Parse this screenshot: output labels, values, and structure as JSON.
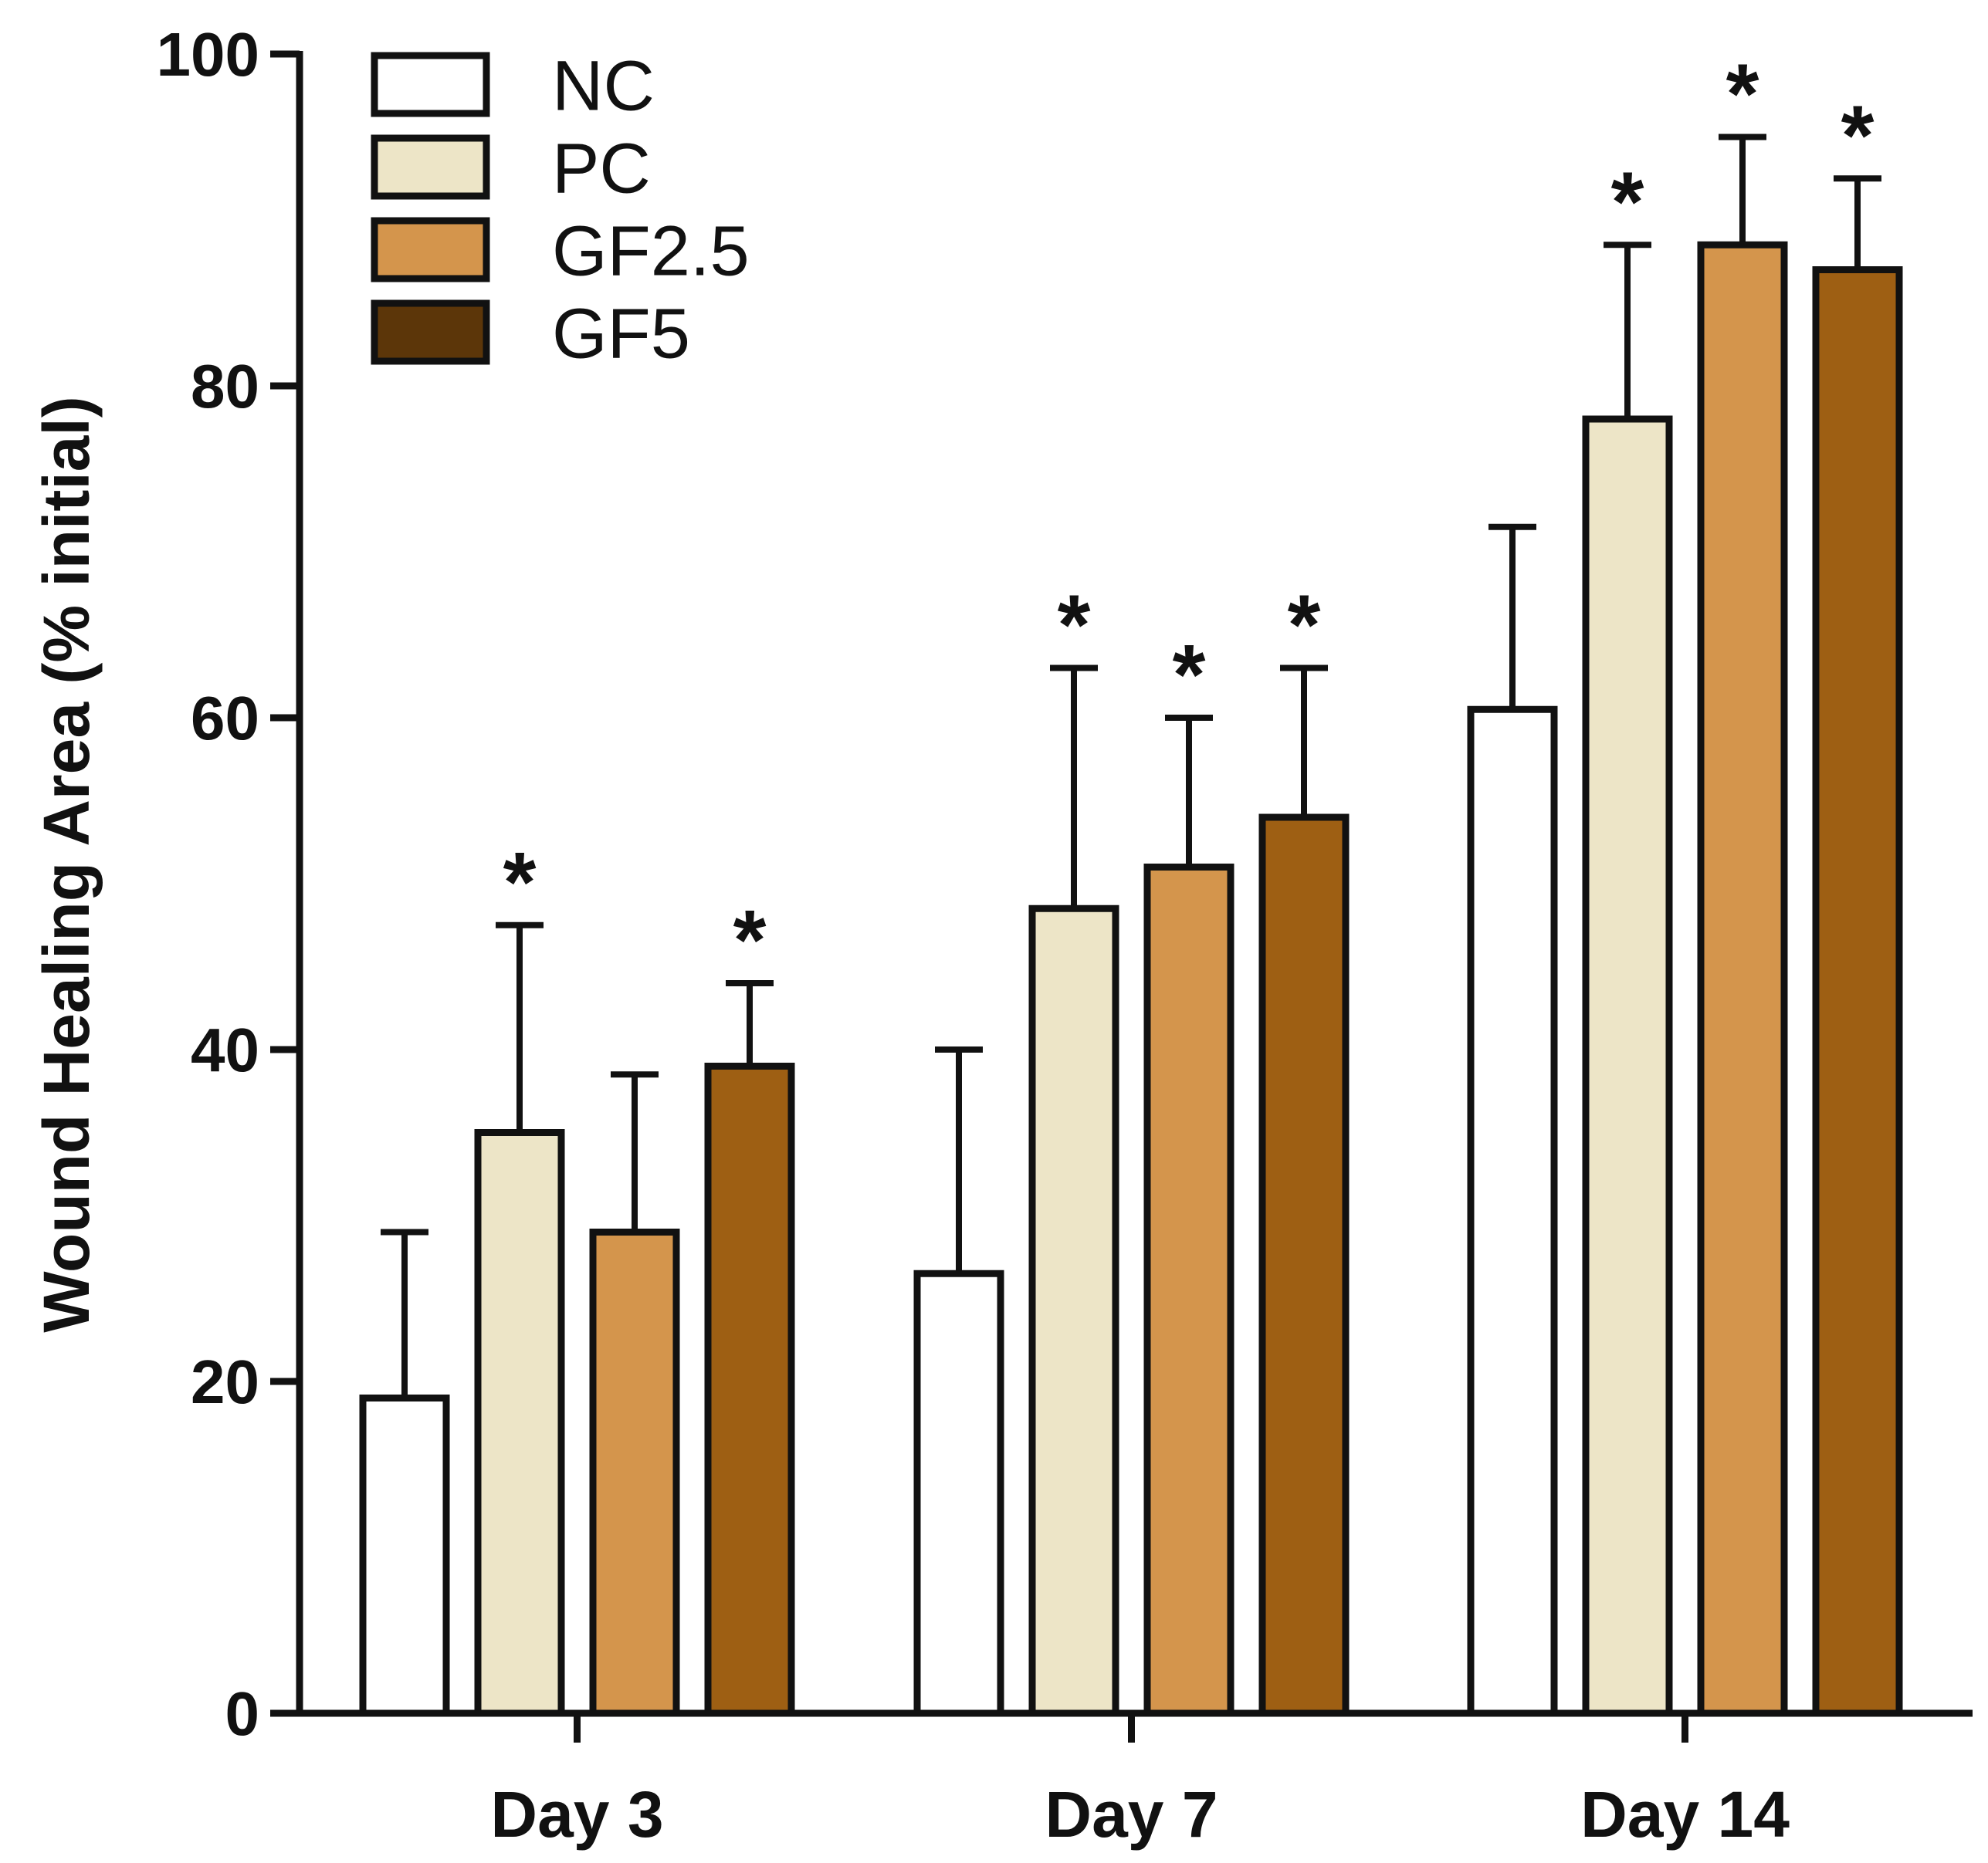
{
  "chart_data": {
    "type": "bar",
    "title": "",
    "xlabel": "",
    "ylabel": "Wound Healing Area (% initial)",
    "ylim": [
      0,
      100
    ],
    "yticks": [
      "0",
      "20",
      "40",
      "60",
      "80",
      "100"
    ],
    "categories": [
      "Day 3",
      "Day 7",
      "Day 14"
    ],
    "legend_position": "top-left",
    "grid": false,
    "significance_marker": "*",
    "series": [
      {
        "name": "NC",
        "color": "#ffffff",
        "values": [
          19,
          26.5,
          60.5
        ],
        "errors": [
          10,
          13.5,
          11
        ],
        "significant": [
          false,
          false,
          false
        ]
      },
      {
        "name": "PC",
        "color": "#ede5c7",
        "values": [
          35,
          48.5,
          78
        ],
        "errors": [
          12.5,
          14.5,
          10.5
        ],
        "significant": [
          true,
          true,
          true
        ]
      },
      {
        "name": "GF2.5",
        "color": "#d4954c",
        "values": [
          29,
          51,
          88.5
        ],
        "errors": [
          9.5,
          9,
          6.5
        ],
        "significant": [
          false,
          true,
          true
        ]
      },
      {
        "name": "GF5",
        "color": "#9e5f13",
        "legend_color": "#5c3609",
        "values": [
          39,
          54,
          87
        ],
        "errors": [
          5,
          9,
          5.5
        ],
        "significant": [
          true,
          true,
          true
        ]
      }
    ]
  }
}
